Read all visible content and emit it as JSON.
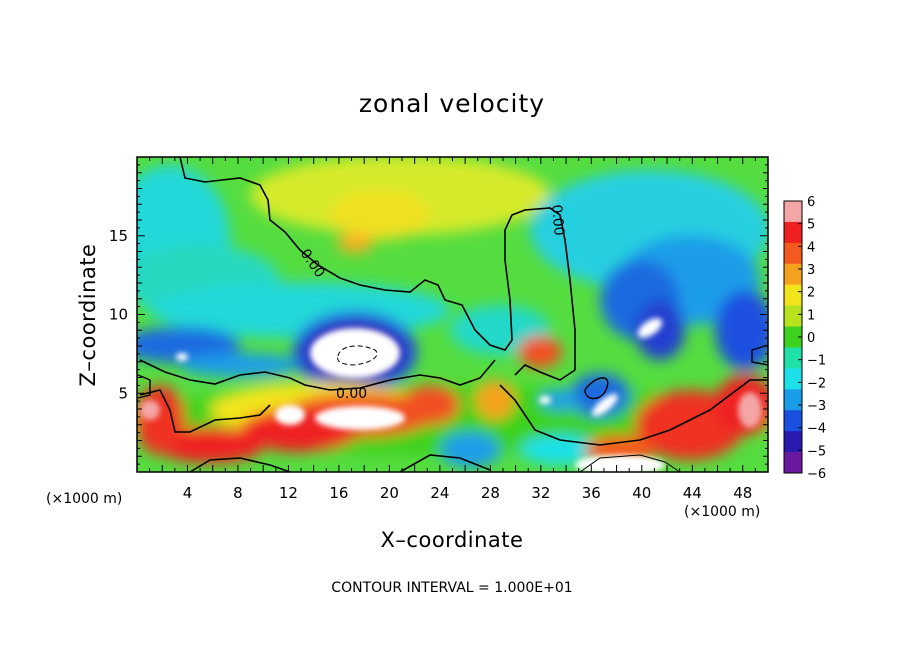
{
  "chart_data": {
    "type": "heatmap",
    "title": "zonal velocity",
    "xlabel": "X–coordinate",
    "ylabel": "Z–coordinate",
    "x_unit": "(×1000 m)",
    "z_unit": "(×1000 m)",
    "xlim": [
      0,
      50
    ],
    "ylim": [
      0,
      20
    ],
    "x_ticks": [
      4,
      8,
      12,
      16,
      20,
      24,
      28,
      32,
      36,
      40,
      44,
      48
    ],
    "y_ticks": [
      5,
      10,
      15
    ],
    "colorbar": {
      "values": [
        6,
        5,
        4,
        3,
        2,
        1,
        0,
        -1,
        -2,
        -3,
        -4,
        -5,
        -6
      ],
      "labels": [
        "6",
        "5",
        "4",
        "3",
        "2",
        "1",
        "0",
        "−1",
        "−2",
        "−3",
        "−4",
        "−5",
        "−6"
      ],
      "colors": [
        "#f4a6a6",
        "#ef2020",
        "#f45a1e",
        "#f5a21e",
        "#f2e51e",
        "#b8e21e",
        "#3cd21e",
        "#1fe0a8",
        "#1ee0e8",
        "#1a9de8",
        "#1a4fe0",
        "#2b1ab0",
        "#6a1aa0"
      ]
    },
    "contour_labels": [
      "0.00",
      "0.00",
      "0.00"
    ],
    "footer": "CONTOUR INTERVAL = 1.000E+01"
  }
}
